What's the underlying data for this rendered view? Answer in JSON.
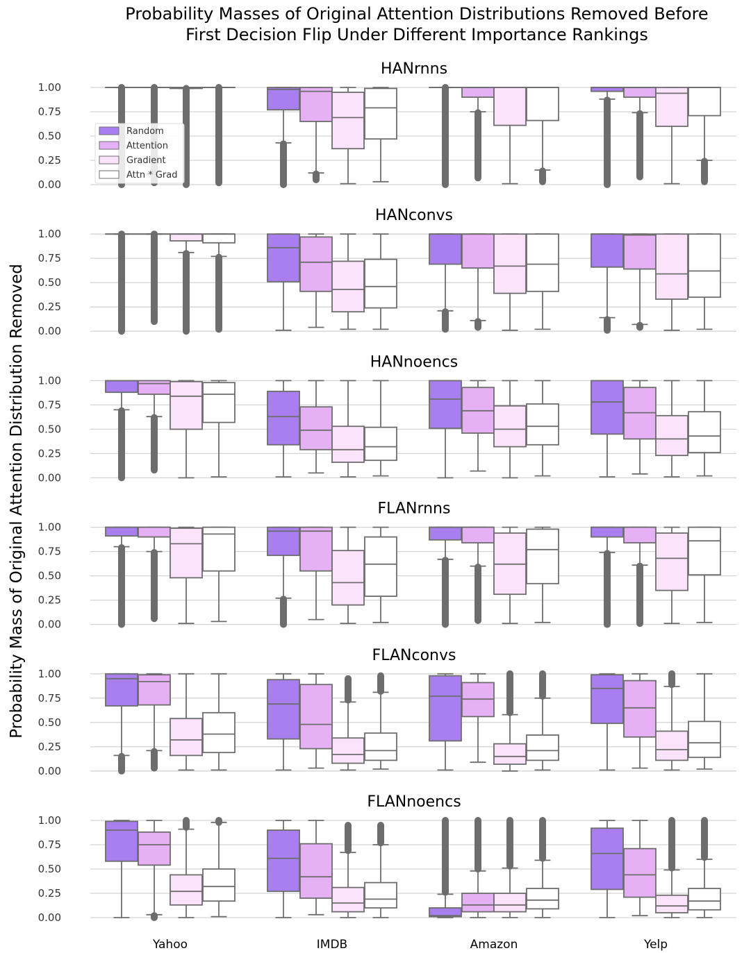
{
  "chart_data": {
    "type": "boxplot",
    "title": [
      "Probability Masses of Original Attention Distributions Removed Before",
      "First Decision Flip Under Different Importance Rankings"
    ],
    "ylabel": "Probability Mass of Original Attention Distribution Removed",
    "categories": [
      "Yahoo",
      "IMDB",
      "Amazon",
      "Yelp"
    ],
    "ylim": [
      0,
      1
    ],
    "yticks": [
      "0.00",
      "0.25",
      "0.50",
      "0.75",
      "1.00"
    ],
    "series": [
      {
        "name": "Random",
        "color": "#a97ff0"
      },
      {
        "name": "Attention",
        "color": "#e6b0f4"
      },
      {
        "name": "Gradient",
        "color": "#fbe3fc"
      },
      {
        "name": "Attn * Grad",
        "color": "#ffffff"
      }
    ],
    "panels": [
      {
        "title": "HANrnns",
        "boxes": [
          [
            {
              "q1": 1.0,
              "med": 1.0,
              "q3": 1.0,
              "wlo": 1.0,
              "whi": 1.0,
              "flo": 0.0,
              "fhi": 1.0
            },
            {
              "q1": 1.0,
              "med": 1.0,
              "q3": 1.0,
              "wlo": 1.0,
              "whi": 1.0,
              "flo": 0.02,
              "fhi": 1.0
            },
            {
              "q1": 0.99,
              "med": 1.0,
              "q3": 1.0,
              "wlo": 0.99,
              "whi": 1.0,
              "flo": 0.0,
              "fhi": 0.99
            },
            {
              "q1": 1.0,
              "med": 1.0,
              "q3": 1.0,
              "wlo": 1.0,
              "whi": 1.0,
              "flo": 0.02,
              "fhi": 1.0
            }
          ],
          [
            {
              "q1": 0.77,
              "med": 0.98,
              "q3": 1.0,
              "wlo": 0.43,
              "whi": 1.0,
              "flo": 0.0,
              "fhi": 0.42
            },
            {
              "q1": 0.65,
              "med": 0.96,
              "q3": 1.0,
              "wlo": 0.12,
              "whi": 1.0,
              "flo": 0.05,
              "fhi": 0.11
            },
            {
              "q1": 0.37,
              "med": 0.69,
              "q3": 0.95,
              "wlo": 0.01,
              "whi": 1.0
            },
            {
              "q1": 0.47,
              "med": 0.79,
              "q3": 0.99,
              "wlo": 0.03,
              "whi": 1.0
            }
          ],
          [
            {
              "q1": 1.0,
              "med": 1.0,
              "q3": 1.0,
              "wlo": 1.0,
              "whi": 1.0,
              "flo": 0.0,
              "fhi": 1.0
            },
            {
              "q1": 0.9,
              "med": 1.0,
              "q3": 1.0,
              "wlo": 0.75,
              "whi": 1.0,
              "flo": 0.07,
              "fhi": 0.74
            },
            {
              "q1": 0.61,
              "med": 1.0,
              "q3": 1.0,
              "wlo": 0.01,
              "whi": 1.0
            },
            {
              "q1": 0.66,
              "med": 1.0,
              "q3": 1.0,
              "wlo": 0.15,
              "whi": 1.0,
              "flo": 0.03,
              "fhi": 0.14
            }
          ],
          [
            {
              "q1": 0.96,
              "med": 1.0,
              "q3": 1.0,
              "wlo": 0.88,
              "whi": 1.0,
              "flo": 0.0,
              "fhi": 0.87
            },
            {
              "q1": 0.9,
              "med": 1.0,
              "q3": 1.0,
              "wlo": 0.74,
              "whi": 1.0,
              "flo": 0.08,
              "fhi": 0.73
            },
            {
              "q1": 0.6,
              "med": 0.94,
              "q3": 1.0,
              "wlo": 0.01,
              "whi": 1.0
            },
            {
              "q1": 0.71,
              "med": 1.0,
              "q3": 1.0,
              "wlo": 0.25,
              "whi": 1.0,
              "flo": 0.03,
              "fhi": 0.24
            }
          ]
        ]
      },
      {
        "title": "HANconvs",
        "boxes": [
          [
            {
              "q1": 1.0,
              "med": 1.0,
              "q3": 1.0,
              "wlo": 1.0,
              "whi": 1.0,
              "flo": 0.0,
              "fhi": 1.0
            },
            {
              "q1": 1.0,
              "med": 1.0,
              "q3": 1.0,
              "wlo": 1.0,
              "whi": 1.0,
              "flo": 0.1,
              "fhi": 1.0
            },
            {
              "q1": 0.93,
              "med": 1.0,
              "q3": 1.0,
              "wlo": 0.81,
              "whi": 1.0,
              "flo": 0.0,
              "fhi": 0.8
            },
            {
              "q1": 0.91,
              "med": 1.0,
              "q3": 1.0,
              "wlo": 0.77,
              "whi": 1.0,
              "flo": 0.02,
              "fhi": 0.76
            }
          ],
          [
            {
              "q1": 0.51,
              "med": 0.86,
              "q3": 1.0,
              "wlo": 0.01,
              "whi": 1.0
            },
            {
              "q1": 0.41,
              "med": 0.71,
              "q3": 0.97,
              "wlo": 0.04,
              "whi": 1.0
            },
            {
              "q1": 0.2,
              "med": 0.43,
              "q3": 0.72,
              "wlo": 0.02,
              "whi": 1.0
            },
            {
              "q1": 0.24,
              "med": 0.46,
              "q3": 0.74,
              "wlo": 0.02,
              "whi": 1.0
            }
          ],
          [
            {
              "q1": 0.69,
              "med": 1.0,
              "q3": 1.0,
              "wlo": 0.21,
              "whi": 1.0,
              "flo": 0.02,
              "fhi": 0.2
            },
            {
              "q1": 0.65,
              "med": 1.0,
              "q3": 1.0,
              "wlo": 0.11,
              "whi": 1.0,
              "flo": 0.04,
              "fhi": 0.1
            },
            {
              "q1": 0.39,
              "med": 0.67,
              "q3": 1.0,
              "wlo": 0.01,
              "whi": 1.0
            },
            {
              "q1": 0.41,
              "med": 0.69,
              "q3": 1.0,
              "wlo": 0.02,
              "whi": 1.0
            }
          ],
          [
            {
              "q1": 0.66,
              "med": 1.0,
              "q3": 1.0,
              "wlo": 0.14,
              "whi": 1.0,
              "flo": 0.01,
              "fhi": 0.12
            },
            {
              "q1": 0.64,
              "med": 0.99,
              "q3": 1.0,
              "wlo": 0.07,
              "whi": 1.0,
              "flo": 0.04,
              "fhi": 0.06
            },
            {
              "q1": 0.33,
              "med": 0.59,
              "q3": 1.0,
              "wlo": 0.01,
              "whi": 1.0
            },
            {
              "q1": 0.35,
              "med": 0.62,
              "q3": 1.0,
              "wlo": 0.02,
              "whi": 1.0
            }
          ]
        ]
      },
      {
        "title": "HANnoencs",
        "boxes": [
          [
            {
              "q1": 0.88,
              "med": 1.0,
              "q3": 1.0,
              "wlo": 0.7,
              "whi": 1.0,
              "flo": 0.0,
              "fhi": 0.69
            },
            {
              "q1": 0.86,
              "med": 0.97,
              "q3": 1.0,
              "wlo": 0.63,
              "whi": 1.0,
              "flo": 0.08,
              "fhi": 0.62
            },
            {
              "q1": 0.5,
              "med": 0.84,
              "q3": 0.99,
              "wlo": 0.0,
              "whi": 1.0
            },
            {
              "q1": 0.57,
              "med": 0.86,
              "q3": 0.98,
              "wlo": 0.01,
              "whi": 1.0
            }
          ],
          [
            {
              "q1": 0.34,
              "med": 0.63,
              "q3": 0.89,
              "wlo": 0.01,
              "whi": 1.0
            },
            {
              "q1": 0.29,
              "med": 0.49,
              "q3": 0.73,
              "wlo": 0.05,
              "whi": 1.0
            },
            {
              "q1": 0.16,
              "med": 0.29,
              "q3": 0.53,
              "wlo": 0.01,
              "whi": 1.0
            },
            {
              "q1": 0.18,
              "med": 0.32,
              "q3": 0.52,
              "wlo": 0.02,
              "whi": 1.0
            }
          ],
          [
            {
              "q1": 0.51,
              "med": 0.81,
              "q3": 1.0,
              "wlo": 0.0,
              "whi": 1.0
            },
            {
              "q1": 0.46,
              "med": 0.69,
              "q3": 0.93,
              "wlo": 0.07,
              "whi": 1.0
            },
            {
              "q1": 0.32,
              "med": 0.5,
              "q3": 0.74,
              "wlo": 0.0,
              "whi": 1.0
            },
            {
              "q1": 0.34,
              "med": 0.53,
              "q3": 0.76,
              "wlo": 0.02,
              "whi": 1.0
            }
          ],
          [
            {
              "q1": 0.45,
              "med": 0.78,
              "q3": 1.0,
              "wlo": 0.01,
              "whi": 1.0
            },
            {
              "q1": 0.4,
              "med": 0.67,
              "q3": 0.93,
              "wlo": 0.04,
              "whi": 1.0
            },
            {
              "q1": 0.23,
              "med": 0.4,
              "q3": 0.64,
              "wlo": 0.01,
              "whi": 1.0
            },
            {
              "q1": 0.26,
              "med": 0.43,
              "q3": 0.68,
              "wlo": 0.02,
              "whi": 1.0
            }
          ]
        ]
      },
      {
        "title": "FLANrnns",
        "boxes": [
          [
            {
              "q1": 0.91,
              "med": 1.0,
              "q3": 1.0,
              "wlo": 0.8,
              "whi": 1.0,
              "flo": 0.0,
              "fhi": 0.79
            },
            {
              "q1": 0.9,
              "med": 1.0,
              "q3": 1.0,
              "wlo": 0.75,
              "whi": 1.0,
              "flo": 0.06,
              "fhi": 0.74
            },
            {
              "q1": 0.48,
              "med": 0.83,
              "q3": 0.99,
              "wlo": 0.01,
              "whi": 1.0
            },
            {
              "q1": 0.55,
              "med": 0.93,
              "q3": 1.0,
              "wlo": 0.03,
              "whi": 1.0
            }
          ],
          [
            {
              "q1": 0.71,
              "med": 0.96,
              "q3": 1.0,
              "wlo": 0.27,
              "whi": 1.0,
              "flo": 0.0,
              "fhi": 0.26
            },
            {
              "q1": 0.55,
              "med": 0.96,
              "q3": 1.0,
              "wlo": 0.05,
              "whi": 1.0
            },
            {
              "q1": 0.2,
              "med": 0.43,
              "q3": 0.76,
              "wlo": 0.01,
              "whi": 1.0
            },
            {
              "q1": 0.29,
              "med": 0.62,
              "q3": 0.9,
              "wlo": 0.02,
              "whi": 1.0
            }
          ],
          [
            {
              "q1": 0.87,
              "med": 1.0,
              "q3": 1.0,
              "wlo": 0.67,
              "whi": 1.0,
              "flo": 0.0,
              "fhi": 0.66
            },
            {
              "q1": 0.84,
              "med": 1.0,
              "q3": 1.0,
              "wlo": 0.6,
              "whi": 1.0,
              "flo": 0.04,
              "fhi": 0.59
            },
            {
              "q1": 0.31,
              "med": 0.62,
              "q3": 0.94,
              "wlo": 0.01,
              "whi": 1.0
            },
            {
              "q1": 0.42,
              "med": 0.77,
              "q3": 0.98,
              "wlo": 0.02,
              "whi": 1.0
            }
          ],
          [
            {
              "q1": 0.9,
              "med": 1.0,
              "q3": 1.0,
              "wlo": 0.74,
              "whi": 1.0,
              "flo": 0.0,
              "fhi": 0.73
            },
            {
              "q1": 0.84,
              "med": 1.0,
              "q3": 1.0,
              "wlo": 0.61,
              "whi": 1.0,
              "flo": 0.01,
              "fhi": 0.6
            },
            {
              "q1": 0.35,
              "med": 0.68,
              "q3": 0.94,
              "wlo": 0.01,
              "whi": 1.0
            },
            {
              "q1": 0.51,
              "med": 0.86,
              "q3": 1.0,
              "wlo": 0.02,
              "whi": 1.0
            }
          ]
        ]
      },
      {
        "title": "FLANconvs",
        "boxes": [
          [
            {
              "q1": 0.67,
              "med": 0.95,
              "q3": 1.0,
              "wlo": 0.16,
              "whi": 1.0,
              "flo": 0.0,
              "fhi": 0.15
            },
            {
              "q1": 0.68,
              "med": 0.92,
              "q3": 0.99,
              "wlo": 0.21,
              "whi": 1.0,
              "flo": 0.03,
              "fhi": 0.2
            },
            {
              "q1": 0.16,
              "med": 0.32,
              "q3": 0.54,
              "wlo": 0.01,
              "whi": 1.0
            },
            {
              "q1": 0.19,
              "med": 0.38,
              "q3": 0.6,
              "wlo": 0.01,
              "whi": 1.0
            }
          ],
          [
            {
              "q1": 0.33,
              "med": 0.69,
              "q3": 0.94,
              "wlo": 0.01,
              "whi": 1.0
            },
            {
              "q1": 0.23,
              "med": 0.48,
              "q3": 0.89,
              "wlo": 0.03,
              "whi": 1.0
            },
            {
              "q1": 0.08,
              "med": 0.17,
              "q3": 0.34,
              "wlo": 0.01,
              "whi": 0.71,
              "flo": 0.73,
              "fhi": 0.95
            },
            {
              "q1": 0.11,
              "med": 0.21,
              "q3": 0.39,
              "wlo": 0.02,
              "whi": 0.81,
              "flo": 0.82,
              "fhi": 0.98
            }
          ],
          [
            {
              "q1": 0.31,
              "med": 0.77,
              "q3": 0.98,
              "wlo": 0.01,
              "whi": 1.0
            },
            {
              "q1": 0.56,
              "med": 0.74,
              "q3": 0.91,
              "wlo": 0.09,
              "whi": 1.0
            },
            {
              "q1": 0.07,
              "med": 0.15,
              "q3": 0.28,
              "wlo": 0.0,
              "whi": 0.58,
              "flo": 0.6,
              "fhi": 1.0
            },
            {
              "q1": 0.11,
              "med": 0.21,
              "q3": 0.37,
              "wlo": 0.01,
              "whi": 0.75,
              "flo": 0.77,
              "fhi": 1.0
            }
          ],
          [
            {
              "q1": 0.49,
              "med": 0.85,
              "q3": 0.99,
              "wlo": 0.01,
              "whi": 1.0
            },
            {
              "q1": 0.35,
              "med": 0.65,
              "q3": 0.93,
              "wlo": 0.03,
              "whi": 1.0
            },
            {
              "q1": 0.11,
              "med": 0.22,
              "q3": 0.41,
              "wlo": 0.01,
              "whi": 0.87,
              "flo": 0.89,
              "fhi": 1.0
            },
            {
              "q1": 0.14,
              "med": 0.29,
              "q3": 0.51,
              "wlo": 0.02,
              "whi": 1.0
            }
          ]
        ]
      },
      {
        "title": "FLANnoencs",
        "boxes": [
          [
            {
              "q1": 0.58,
              "med": 0.9,
              "q3": 0.99,
              "wlo": 0.0,
              "whi": 1.0
            },
            {
              "q1": 0.54,
              "med": 0.75,
              "q3": 0.88,
              "wlo": 0.03,
              "whi": 1.0,
              "flo": 0.0,
              "fhi": 0.02
            },
            {
              "q1": 0.13,
              "med": 0.27,
              "q3": 0.44,
              "wlo": 0.0,
              "whi": 0.91,
              "flo": 0.93,
              "fhi": 1.0
            },
            {
              "q1": 0.17,
              "med": 0.32,
              "q3": 0.5,
              "wlo": 0.01,
              "whi": 0.98,
              "flo": 0.98,
              "fhi": 1.0
            }
          ],
          [
            {
              "q1": 0.27,
              "med": 0.61,
              "q3": 0.9,
              "wlo": 0.0,
              "whi": 1.0
            },
            {
              "q1": 0.2,
              "med": 0.42,
              "q3": 0.76,
              "wlo": 0.03,
              "whi": 1.0
            },
            {
              "q1": 0.06,
              "med": 0.15,
              "q3": 0.31,
              "wlo": 0.0,
              "whi": 0.67,
              "flo": 0.69,
              "fhi": 0.95
            },
            {
              "q1": 0.1,
              "med": 0.19,
              "q3": 0.36,
              "wlo": 0.0,
              "whi": 0.75,
              "flo": 0.77,
              "fhi": 0.95
            }
          ],
          [
            {
              "q1": 0.01,
              "med": 0.02,
              "q3": 0.1,
              "wlo": 0.0,
              "whi": 0.24,
              "flo": 0.26,
              "fhi": 1.0
            },
            {
              "q1": 0.06,
              "med": 0.13,
              "q3": 0.25,
              "wlo": 0.0,
              "whi": 0.48,
              "flo": 0.5,
              "fhi": 1.0
            },
            {
              "q1": 0.06,
              "med": 0.13,
              "q3": 0.25,
              "wlo": 0.0,
              "whi": 0.51,
              "flo": 0.53,
              "fhi": 1.0
            },
            {
              "q1": 0.09,
              "med": 0.18,
              "q3": 0.3,
              "wlo": 0.0,
              "whi": 0.59,
              "flo": 0.61,
              "fhi": 1.0
            }
          ],
          [
            {
              "q1": 0.29,
              "med": 0.66,
              "q3": 0.92,
              "wlo": 0.0,
              "whi": 1.0
            },
            {
              "q1": 0.21,
              "med": 0.44,
              "q3": 0.71,
              "wlo": 0.02,
              "whi": 1.0
            },
            {
              "q1": 0.05,
              "med": 0.12,
              "q3": 0.23,
              "wlo": 0.0,
              "whi": 0.49,
              "flo": 0.51,
              "fhi": 1.0
            },
            {
              "q1": 0.08,
              "med": 0.17,
              "q3": 0.3,
              "wlo": 0.0,
              "whi": 0.6,
              "flo": 0.62,
              "fhi": 1.0
            }
          ]
        ]
      }
    ]
  }
}
